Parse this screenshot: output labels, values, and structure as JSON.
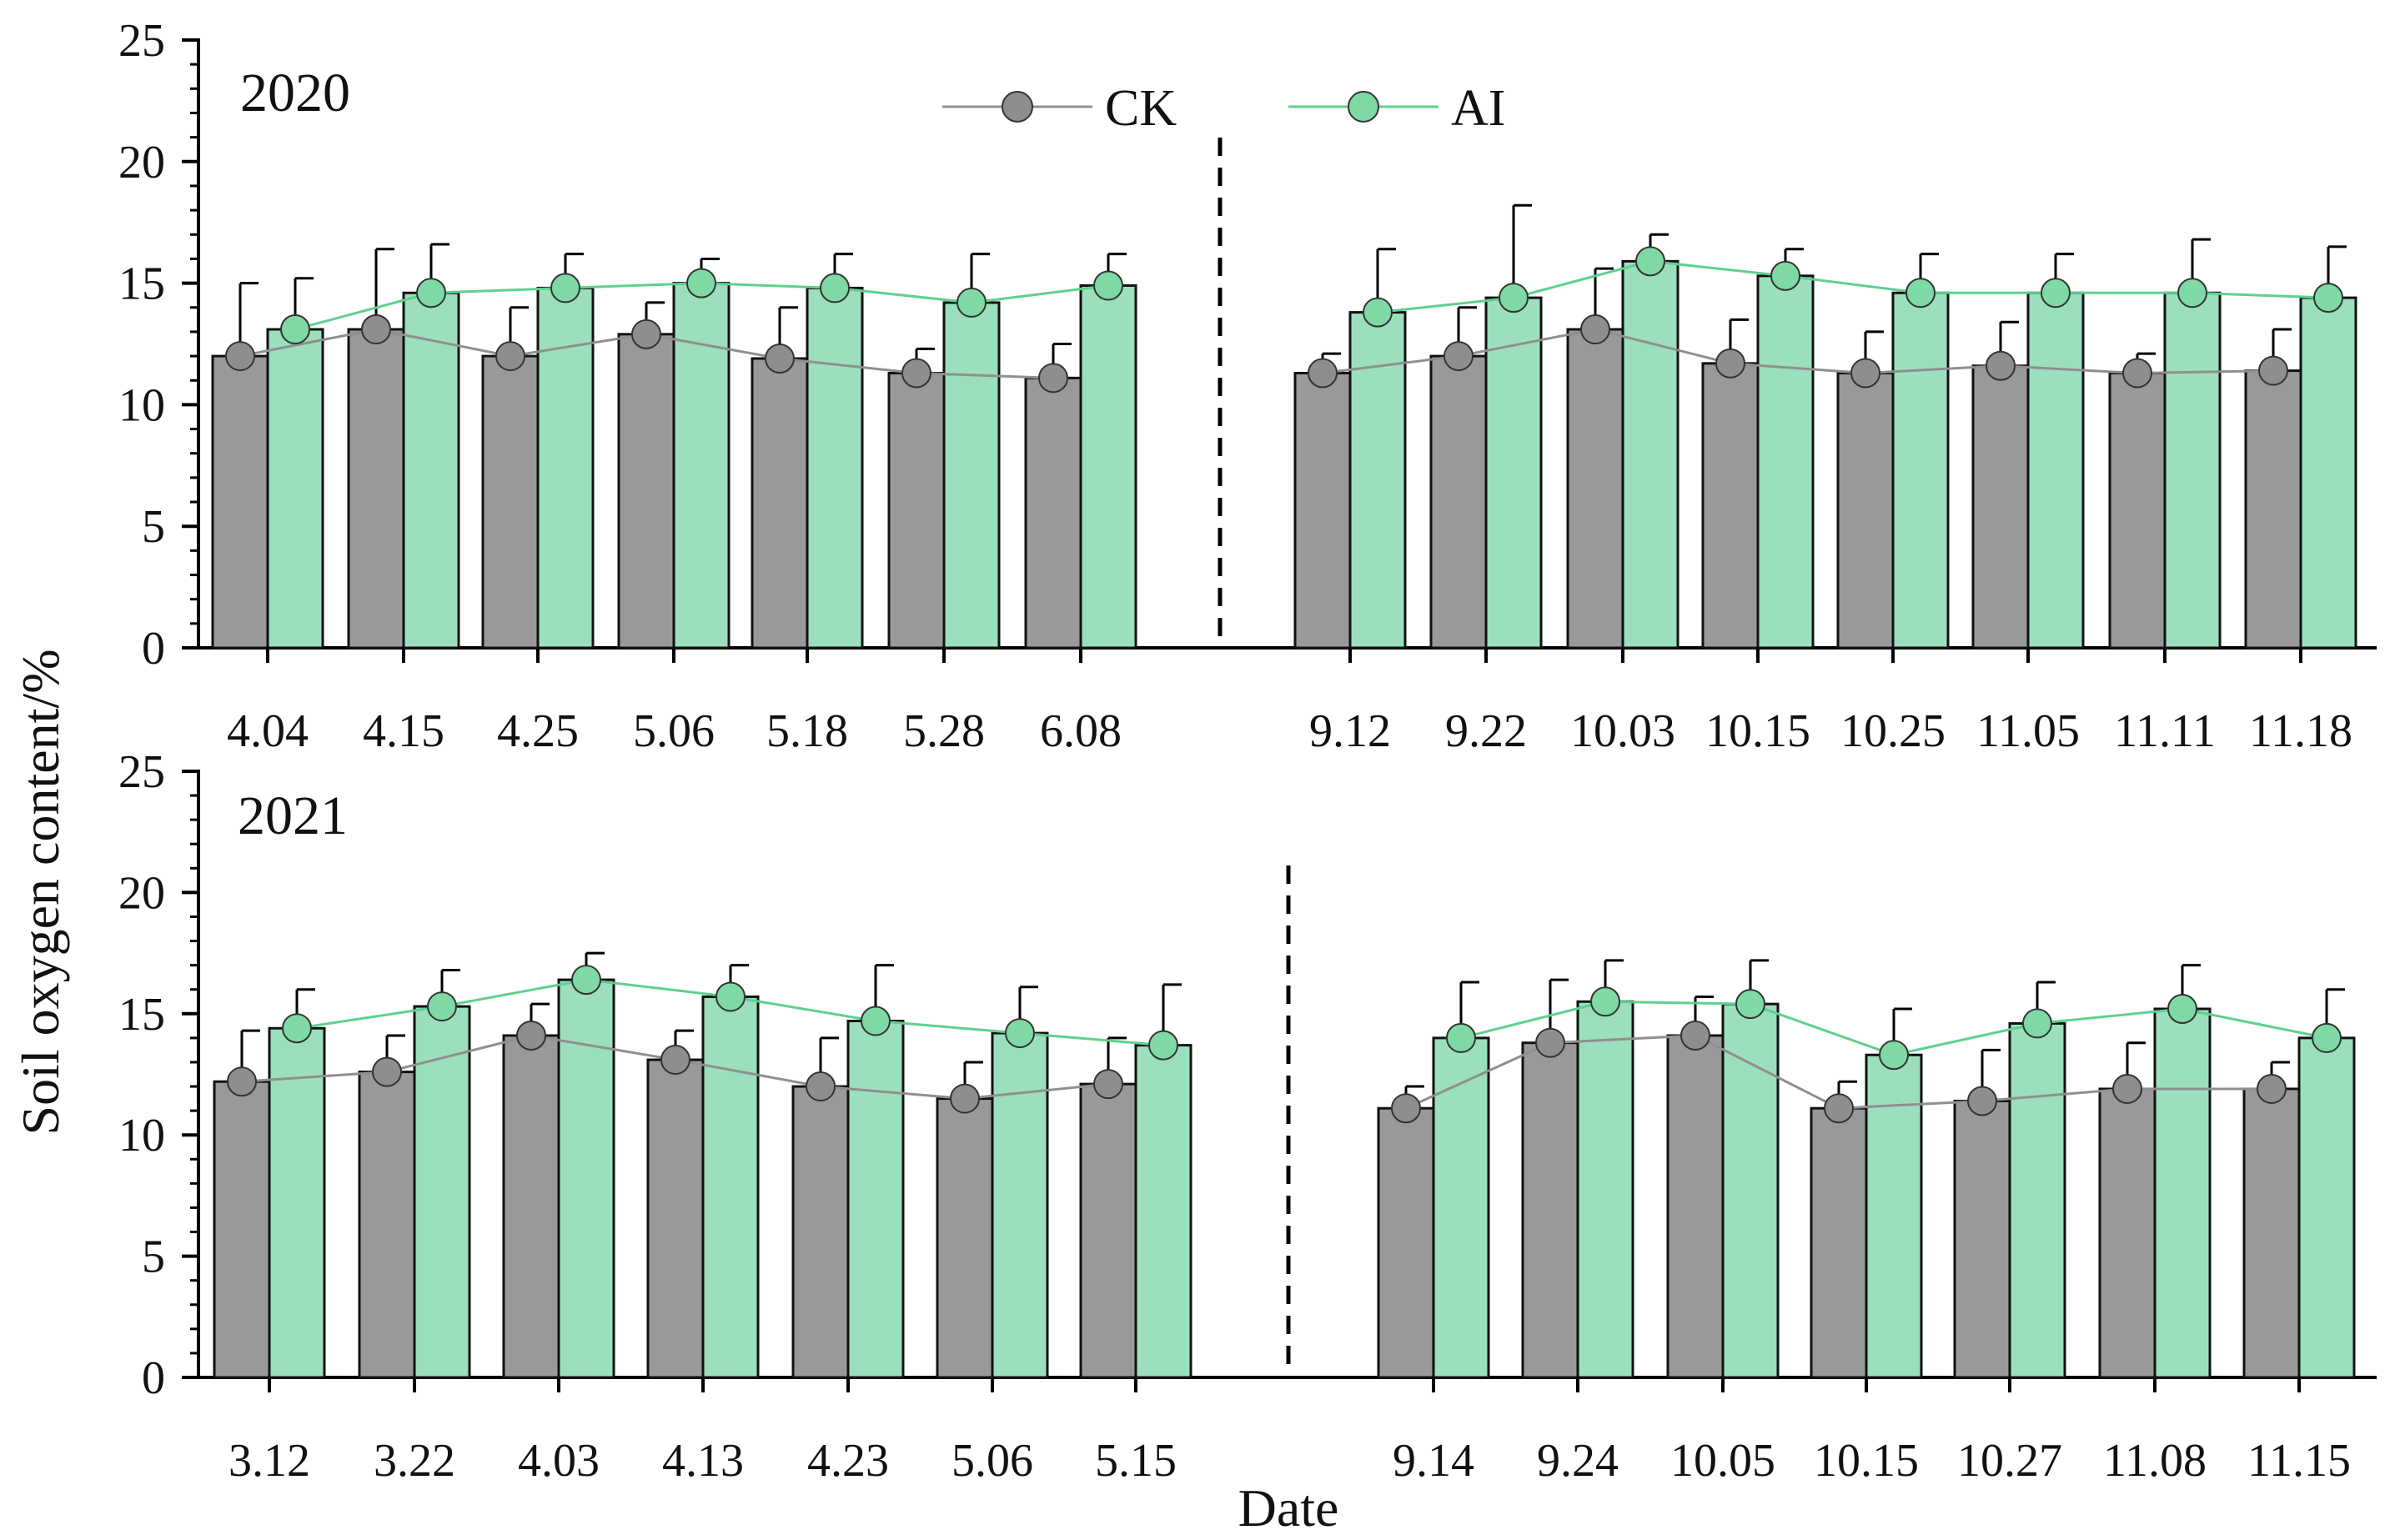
{
  "figure": {
    "ylabel": "Soil oxygen content/%",
    "xlabel": "Date",
    "legend": [
      {
        "name": "CK",
        "color": "#999999",
        "line_color": "#8f8f8f"
      },
      {
        "name": "AI",
        "color": "#9bdfbd",
        "line_color": "#5fd08f"
      }
    ]
  },
  "chart_data": [
    {
      "type": "bar",
      "title": "2020",
      "ylabel": "Soil oxygen content/%",
      "ylim": [
        0,
        25
      ],
      "yticks": [
        0,
        5,
        10,
        15,
        20,
        25
      ],
      "segments": [
        {
          "categories": [
            "4.04",
            "4.15",
            "4.25",
            "5.06",
            "5.18",
            "5.28",
            "6.08"
          ],
          "series": [
            {
              "name": "CK",
              "values": [
                12.0,
                13.1,
                12.0,
                12.9,
                11.9,
                11.3,
                11.1
              ],
              "errors": [
                3.0,
                3.3,
                2.0,
                1.3,
                2.1,
                1.0,
                1.4
              ]
            },
            {
              "name": "AI",
              "values": [
                13.1,
                14.6,
                14.8,
                15.0,
                14.8,
                14.2,
                14.9
              ],
              "errors": [
                2.1,
                2.0,
                1.4,
                1.0,
                1.4,
                2.0,
                1.3
              ]
            }
          ]
        },
        {
          "categories": [
            "9.12",
            "9.22",
            "10.03",
            "10.15",
            "10.25",
            "11.05",
            "11.11",
            "11.18"
          ],
          "series": [
            {
              "name": "CK",
              "values": [
                11.3,
                12.0,
                13.1,
                11.7,
                11.3,
                11.6,
                11.3,
                11.4
              ],
              "errors": [
                0.8,
                2.0,
                2.5,
                1.8,
                1.7,
                1.8,
                0.8,
                1.7
              ]
            },
            {
              "name": "AI",
              "values": [
                13.8,
                14.4,
                15.9,
                15.3,
                14.6,
                14.6,
                14.6,
                14.4
              ],
              "errors": [
                2.6,
                3.8,
                1.1,
                1.1,
                1.6,
                1.6,
                2.2,
                2.1
              ]
            }
          ]
        }
      ]
    },
    {
      "type": "bar",
      "title": "2021",
      "xlabel": "Date",
      "ylabel": "Soil oxygen content/%",
      "ylim": [
        0,
        25
      ],
      "yticks": [
        0,
        5,
        10,
        15,
        20,
        25
      ],
      "segments": [
        {
          "categories": [
            "3.12",
            "3.22",
            "4.03",
            "4.13",
            "4.23",
            "5.06",
            "5.15"
          ],
          "series": [
            {
              "name": "CK",
              "values": [
                12.2,
                12.6,
                14.1,
                13.1,
                12.0,
                11.5,
                12.1
              ],
              "errors": [
                2.1,
                1.5,
                1.3,
                1.2,
                2.0,
                1.5,
                1.9
              ]
            },
            {
              "name": "AI",
              "values": [
                14.4,
                15.3,
                16.4,
                15.7,
                14.7,
                14.2,
                13.7
              ],
              "errors": [
                1.6,
                1.5,
                1.1,
                1.3,
                2.3,
                1.9,
                2.5
              ]
            }
          ]
        },
        {
          "categories": [
            "9.14",
            "9.24",
            "10.05",
            "10.15",
            "10.27",
            "11.08",
            "11.15"
          ],
          "series": [
            {
              "name": "CK",
              "values": [
                11.1,
                13.8,
                14.1,
                11.1,
                11.4,
                11.9,
                11.9
              ],
              "errors": [
                0.9,
                2.6,
                1.6,
                1.1,
                2.1,
                1.9,
                1.1
              ]
            },
            {
              "name": "AI",
              "values": [
                14.0,
                15.5,
                15.4,
                13.3,
                14.6,
                15.2,
                14.0
              ],
              "errors": [
                2.3,
                1.7,
                1.8,
                1.9,
                1.7,
                1.8,
                2.0
              ]
            }
          ]
        }
      ]
    }
  ]
}
